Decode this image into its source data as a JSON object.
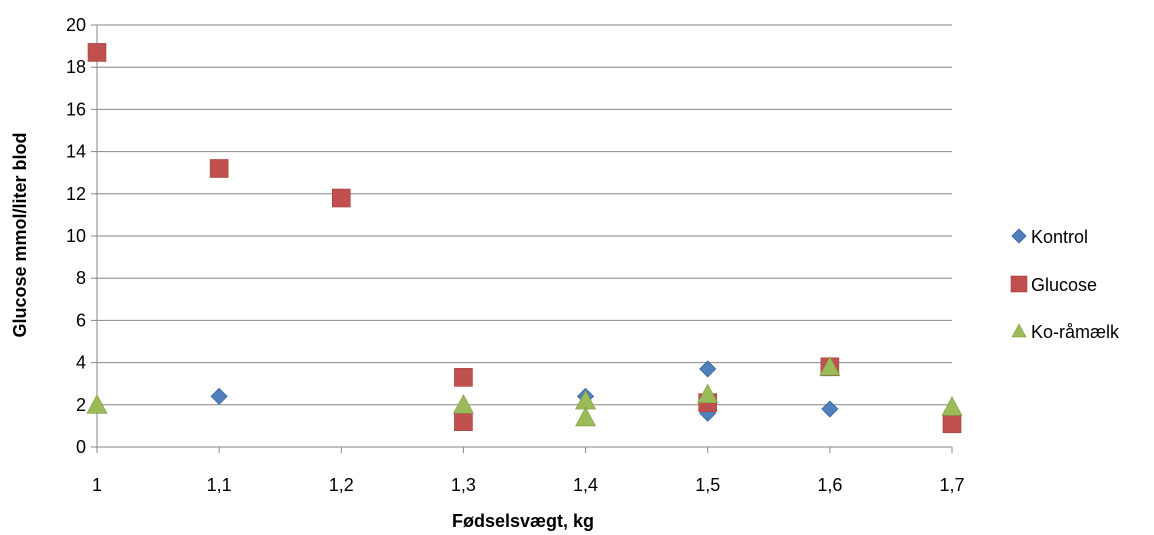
{
  "chart_data": {
    "type": "scatter",
    "xlabel": "Fødselsvægt, kg",
    "ylabel": "Glucose mmol/liter blod",
    "xlim": [
      1,
      1.7
    ],
    "ylim": [
      0,
      20
    ],
    "x_ticks": [
      "1",
      "1,1",
      "1,2",
      "1,3",
      "1,4",
      "1,5",
      "1,6",
      "1,7"
    ],
    "x_tick_values": [
      1.0,
      1.1,
      1.2,
      1.3,
      1.4,
      1.5,
      1.6,
      1.7
    ],
    "y_ticks": [
      "0",
      "2",
      "4",
      "6",
      "8",
      "10",
      "12",
      "14",
      "16",
      "18",
      "20"
    ],
    "y_tick_values": [
      0,
      2,
      4,
      6,
      8,
      10,
      12,
      14,
      16,
      18,
      20
    ],
    "grid": "horizontal",
    "legend_position": "right",
    "series": [
      {
        "name": "Kontrol",
        "marker": "diamond",
        "color": "#4F81BD",
        "points": [
          {
            "x": 1.1,
            "y": 2.4
          },
          {
            "x": 1.4,
            "y": 2.4
          },
          {
            "x": 1.5,
            "y": 3.7
          },
          {
            "x": 1.5,
            "y": 1.6
          },
          {
            "x": 1.6,
            "y": 1.8
          }
        ]
      },
      {
        "name": "Glucose",
        "marker": "square",
        "color": "#C0504D",
        "points": [
          {
            "x": 1.0,
            "y": 18.7
          },
          {
            "x": 1.1,
            "y": 13.2
          },
          {
            "x": 1.2,
            "y": 11.8
          },
          {
            "x": 1.3,
            "y": 3.3
          },
          {
            "x": 1.3,
            "y": 1.2
          },
          {
            "x": 1.5,
            "y": 2.1
          },
          {
            "x": 1.6,
            "y": 3.8
          },
          {
            "x": 1.7,
            "y": 1.1
          }
        ]
      },
      {
        "name": "Ko-råmælk",
        "marker": "triangle",
        "color": "#9BBB59",
        "points": [
          {
            "x": 1.0,
            "y": 2.0
          },
          {
            "x": 1.3,
            "y": 2.0
          },
          {
            "x": 1.4,
            "y": 2.2
          },
          {
            "x": 1.4,
            "y": 1.4
          },
          {
            "x": 1.5,
            "y": 2.5
          },
          {
            "x": 1.6,
            "y": 3.8
          },
          {
            "x": 1.7,
            "y": 1.9
          }
        ]
      }
    ]
  }
}
